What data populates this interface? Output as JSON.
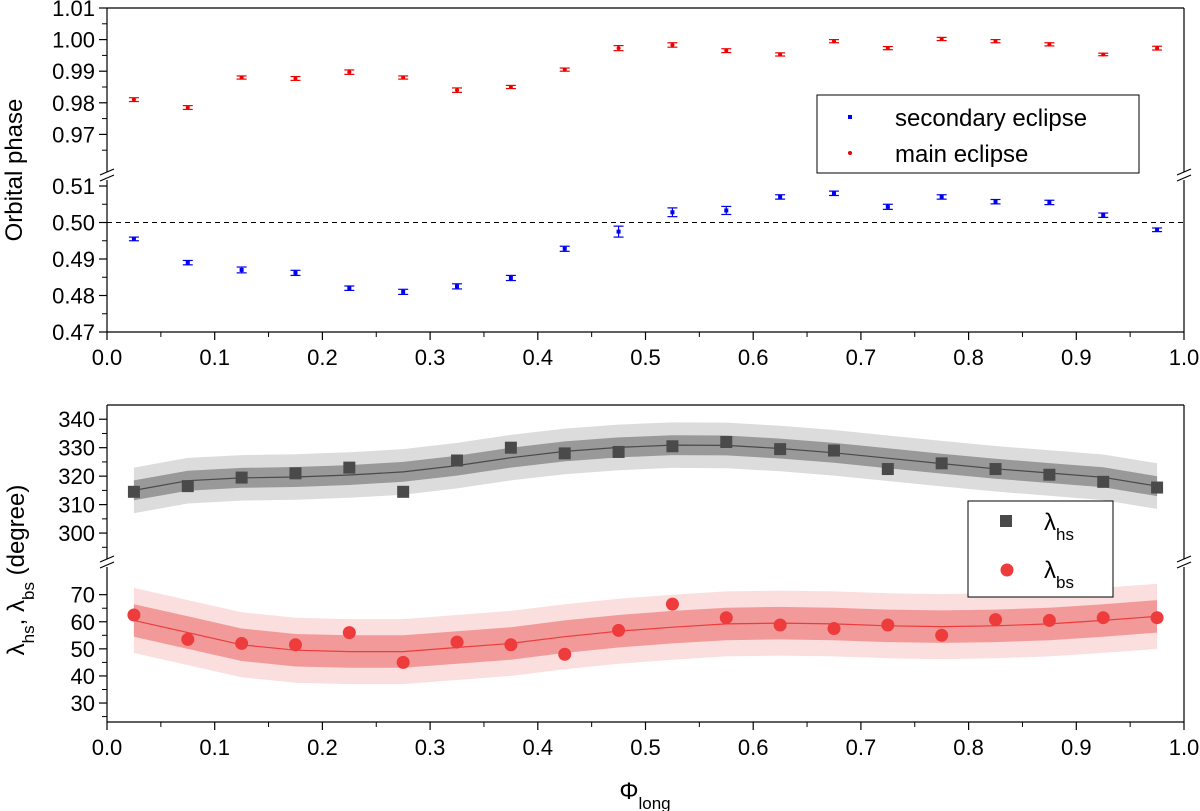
{
  "chart_data": [
    {
      "type": "scatter",
      "ylabel": "Orbital phase",
      "xlim": [
        0.0,
        1.0
      ],
      "x_ticks": [
        "0.0",
        "0.1",
        "0.2",
        "0.3",
        "0.4",
        "0.5",
        "0.6",
        "0.7",
        "0.8",
        "0.9",
        "1.0"
      ],
      "broken_y_axis": true,
      "y_upper_range": [
        0.96,
        1.01
      ],
      "y_upper_ticks": [
        "0.97",
        "0.98",
        "0.99",
        "1.00",
        "1.01"
      ],
      "y_lower_range": [
        0.47,
        0.51
      ],
      "y_lower_ticks": [
        "0.47",
        "0.48",
        "0.49",
        "0.50",
        "0.51"
      ],
      "reference_line": 0.5,
      "legend_position": "right, middle",
      "x": [
        0.025,
        0.075,
        0.125,
        0.175,
        0.225,
        0.275,
        0.325,
        0.375,
        0.425,
        0.475,
        0.525,
        0.575,
        0.625,
        0.675,
        0.725,
        0.775,
        0.825,
        0.875,
        0.925,
        0.975
      ],
      "series": [
        {
          "name": "secondary eclipse",
          "color": "#0000ee",
          "marker": "square",
          "values": [
            0.4955,
            0.489,
            0.487,
            0.4862,
            0.482,
            0.481,
            0.4825,
            0.4848,
            0.4928,
            0.4975,
            0.5028,
            0.5033,
            0.507,
            0.508,
            0.5043,
            0.507,
            0.5057,
            0.5055,
            0.502,
            0.498
          ],
          "errors": [
            0.0005,
            0.0006,
            0.0008,
            0.0007,
            0.0006,
            0.0007,
            0.0007,
            0.0007,
            0.0007,
            0.0015,
            0.0012,
            0.0011,
            0.0006,
            0.0006,
            0.0007,
            0.0006,
            0.0006,
            0.0006,
            0.0006,
            0.0005
          ]
        },
        {
          "name": "main eclipse",
          "color": "#ee0000",
          "marker": "circle",
          "values": [
            0.981,
            0.9785,
            0.988,
            0.9877,
            0.9897,
            0.988,
            0.984,
            0.985,
            0.9905,
            0.9973,
            0.9983,
            0.9965,
            0.9953,
            0.9995,
            0.9973,
            1.0002,
            0.9995,
            0.9985,
            0.9953,
            0.9973
          ],
          "errors": [
            0.0006,
            0.0006,
            0.0005,
            0.0006,
            0.0007,
            0.0005,
            0.0007,
            0.0005,
            0.0005,
            0.0008,
            0.0007,
            0.0006,
            0.0005,
            0.0005,
            0.0005,
            0.0005,
            0.0005,
            0.0005,
            0.0004,
            0.0006
          ]
        }
      ]
    },
    {
      "type": "scatter",
      "xlabel": "Φ",
      "xlabel_sub": "long",
      "ylabel_parts": [
        "λ",
        "hs",
        ", ",
        "λ",
        "bs",
        " (degree)"
      ],
      "xlim": [
        0.0,
        1.0
      ],
      "x_ticks": [
        "0.0",
        "0.1",
        "0.2",
        "0.3",
        "0.4",
        "0.5",
        "0.6",
        "0.7",
        "0.8",
        "0.9",
        "1.0"
      ],
      "broken_y_axis": true,
      "y_upper_range": [
        293,
        345
      ],
      "y_upper_ticks": [
        "300",
        "310",
        "320",
        "330",
        "340"
      ],
      "y_lower_range": [
        23,
        78
      ],
      "y_lower_ticks": [
        "30",
        "40",
        "50",
        "60",
        "70"
      ],
      "legend_position": "right, middle",
      "x": [
        0.025,
        0.075,
        0.125,
        0.175,
        0.225,
        0.275,
        0.325,
        0.375,
        0.425,
        0.475,
        0.525,
        0.575,
        0.625,
        0.675,
        0.725,
        0.775,
        0.825,
        0.875,
        0.925,
        0.975
      ],
      "series": [
        {
          "name": "λ",
          "name_sub": "hs",
          "color": "#4a4a4a",
          "marker": "square",
          "values": [
            314.5,
            316.5,
            319.5,
            321,
            323,
            314.5,
            325.5,
            330,
            328,
            328.5,
            330.5,
            332,
            329.5,
            329,
            322.5,
            324.5,
            322.5,
            320.5,
            318,
            316
          ],
          "fit": [
            315,
            318.4,
            319.4,
            319.7,
            320.4,
            321.5,
            323.7,
            326.5,
            328.7,
            330.1,
            330.9,
            330.8,
            329.7,
            328.2,
            326.3,
            324.4,
            322.6,
            321.1,
            319.6,
            316.5
          ],
          "band_inner": 3.5,
          "band_outer": 8,
          "band_inner_color": "#999999",
          "band_outer_color": "#dcdcdc"
        },
        {
          "name": "λ",
          "name_sub": "bs",
          "color": "#ee3b3b",
          "marker": "circle",
          "values": [
            62.5,
            53.5,
            52,
            51.5,
            56,
            45,
            52.5,
            51.5,
            48,
            56.8,
            66.5,
            61.5,
            58.8,
            57.5,
            58.8,
            55,
            60.8,
            60.5,
            61.5,
            61.5
          ],
          "fit": [
            60.5,
            56,
            51.5,
            49.5,
            49,
            49,
            50.5,
            52,
            54.5,
            56.5,
            58,
            59.2,
            59.5,
            59.2,
            58.5,
            58.2,
            58.5,
            59.2,
            60.5,
            62
          ],
          "band_inner": 6,
          "band_outer": 12,
          "band_inner_color": "#f29a9a",
          "band_outer_color": "#fbdede"
        }
      ]
    }
  ]
}
